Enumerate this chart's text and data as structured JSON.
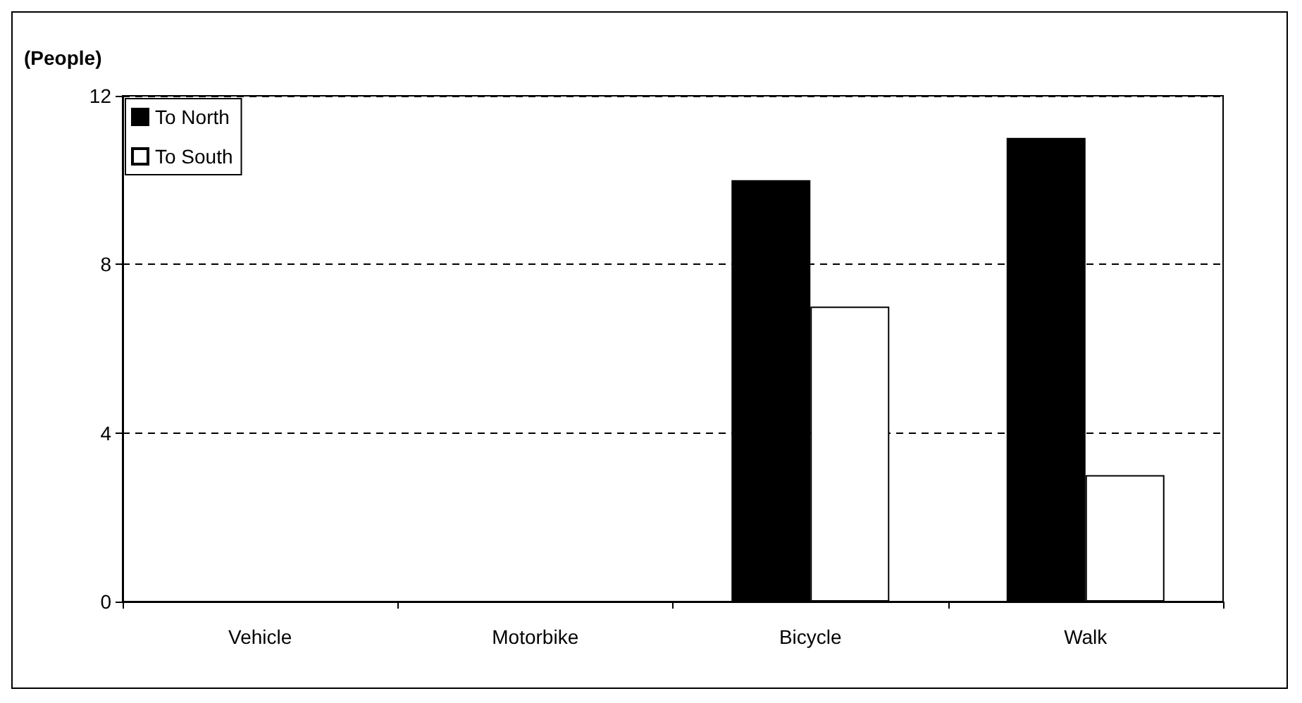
{
  "chart_data": {
    "type": "bar",
    "ylabel": "(People)",
    "categories": [
      "Vehicle",
      "Motorbike",
      "Bicycle",
      "Walk"
    ],
    "series": [
      {
        "name": "To North",
        "color": "#000000",
        "values": [
          0,
          0,
          10,
          11
        ]
      },
      {
        "name": "To South",
        "color": "#ffffff",
        "values": [
          0,
          0,
          7,
          3
        ]
      }
    ],
    "ylim": [
      0,
      12
    ],
    "yticks": [
      0,
      4,
      8,
      12
    ],
    "grid": "y",
    "legend": "top left"
  }
}
